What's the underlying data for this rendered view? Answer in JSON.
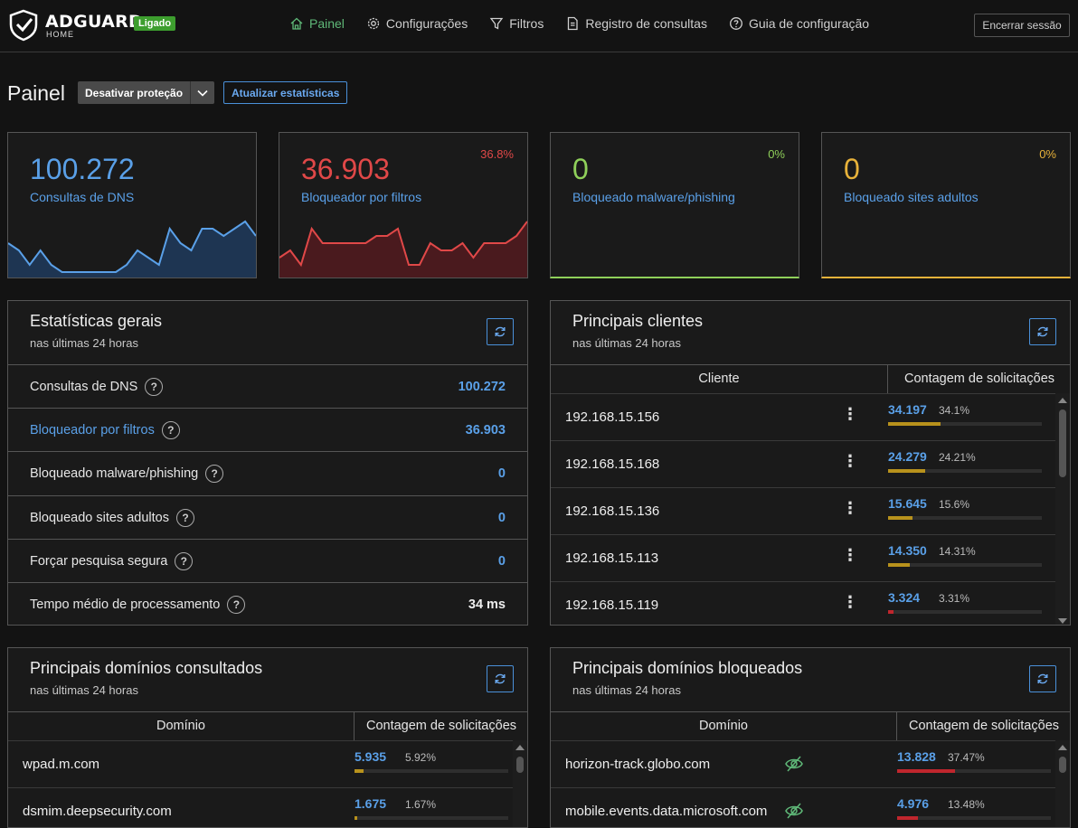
{
  "header": {
    "brand": "ADGUARD",
    "brand_sub": "HOME",
    "status": "Ligado",
    "nav": [
      {
        "label": "Painel",
        "icon": "home-icon"
      },
      {
        "label": "Configurações",
        "icon": "gear-icon"
      },
      {
        "label": "Filtros",
        "icon": "filter-icon"
      },
      {
        "label": "Registro de consultas",
        "icon": "document-icon"
      },
      {
        "label": "Guia de configuração",
        "icon": "help-circle-icon"
      }
    ],
    "logout": "Encerrar sessão"
  },
  "page": {
    "title": "Painel",
    "disable_label": "Desativar proteção",
    "refresh_label": "Atualizar estatísticas"
  },
  "cards": [
    {
      "value": "100.272",
      "label": "Consultas de DNS",
      "pct": "",
      "color": "#5aa0e8",
      "series": [
        4,
        3,
        1,
        3,
        1,
        0,
        0,
        0,
        0,
        0,
        0,
        1,
        3,
        2,
        1,
        6,
        4,
        3,
        6,
        6,
        5,
        6,
        7,
        5
      ]
    },
    {
      "value": "36.903",
      "label": "Bloqueador por filtros",
      "pct": "36.8%",
      "color": "#e04848",
      "series": [
        2,
        3,
        1,
        6,
        4,
        4,
        4,
        4,
        4,
        5,
        5,
        6,
        1,
        1,
        4,
        3,
        3,
        4,
        2,
        4,
        4,
        4,
        5,
        7
      ]
    },
    {
      "value": "0",
      "label": "Bloqueado malware/phishing",
      "pct": "0%",
      "color": "#8fd05a",
      "series": []
    },
    {
      "value": "0",
      "label": "Bloqueado sites adultos",
      "pct": "0%",
      "color": "#e8b23a",
      "series": []
    }
  ],
  "general": {
    "title": "Estatísticas gerais",
    "sub": "nas últimas 24 horas",
    "rows": [
      {
        "label": "Consultas de DNS",
        "value": "100.272"
      },
      {
        "label": "Bloqueador por filtros",
        "value": "36.903"
      },
      {
        "label": "Bloqueado malware/phishing",
        "value": "0"
      },
      {
        "label": "Bloqueado sites adultos",
        "value": "0"
      },
      {
        "label": "Forçar pesquisa segura",
        "value": "0"
      },
      {
        "label": "Tempo médio de processamento",
        "value": "34 ms"
      }
    ]
  },
  "clients": {
    "title": "Principais clientes",
    "sub": "nas últimas 24 horas",
    "col_client": "Cliente",
    "col_count": "Contagem de solicitações",
    "rows": [
      {
        "name": "192.168.15.156",
        "count": "34.197",
        "pct": "34.1%",
        "frac": 0.341
      },
      {
        "name": "192.168.15.168",
        "count": "24.279",
        "pct": "24.21%",
        "frac": 0.2421
      },
      {
        "name": "192.168.15.136",
        "count": "15.645",
        "pct": "15.6%",
        "frac": 0.156
      },
      {
        "name": "192.168.15.113",
        "count": "14.350",
        "pct": "14.31%",
        "frac": 0.1431
      },
      {
        "name": "192.168.15.119",
        "count": "3.324",
        "pct": "3.31%",
        "frac": 0.0331
      }
    ]
  },
  "queried": {
    "title": "Principais domínios consultados",
    "sub": "nas últimas 24 horas",
    "col_domain": "Domínio",
    "col_count": "Contagem de solicitações",
    "rows": [
      {
        "name": "wpad.m.com",
        "count": "5.935",
        "pct": "5.92%",
        "frac": 0.0592
      },
      {
        "name": "dsmim.deepsecurity.com",
        "count": "1.675",
        "pct": "1.67%",
        "frac": 0.0167
      }
    ]
  },
  "blocked": {
    "title": "Principais domínios bloqueados",
    "sub": "nas últimas 24 horas",
    "col_domain": "Domínio",
    "col_count": "Contagem de solicitações",
    "rows": [
      {
        "name": "horizon-track.globo.com",
        "count": "13.828",
        "pct": "37.47%",
        "frac": 0.3747
      },
      {
        "name": "mobile.events.data.microsoft.com",
        "count": "4.976",
        "pct": "13.48%",
        "frac": 0.1348
      }
    ]
  }
}
